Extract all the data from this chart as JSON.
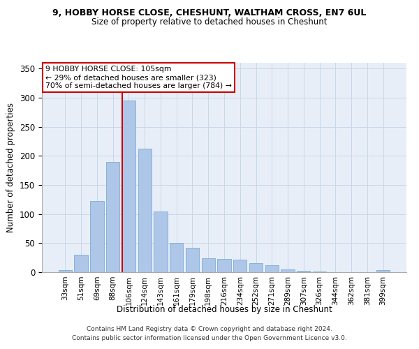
{
  "title1": "9, HOBBY HORSE CLOSE, CHESHUNT, WALTHAM CROSS, EN7 6UL",
  "title2": "Size of property relative to detached houses in Cheshunt",
  "xlabel": "Distribution of detached houses by size in Cheshunt",
  "ylabel": "Number of detached properties",
  "footer1": "Contains HM Land Registry data © Crown copyright and database right 2024.",
  "footer2": "Contains public sector information licensed under the Open Government Licence v3.0.",
  "bar_labels": [
    "33sqm",
    "51sqm",
    "69sqm",
    "88sqm",
    "106sqm",
    "124sqm",
    "143sqm",
    "161sqm",
    "179sqm",
    "198sqm",
    "216sqm",
    "234sqm",
    "252sqm",
    "271sqm",
    "289sqm",
    "307sqm",
    "326sqm",
    "344sqm",
    "362sqm",
    "381sqm",
    "399sqm"
  ],
  "bar_values": [
    4,
    30,
    122,
    190,
    295,
    212,
    105,
    51,
    42,
    24,
    23,
    22,
    16,
    12,
    5,
    2,
    1,
    0,
    0,
    0,
    4
  ],
  "bar_color": "#aec6e8",
  "bar_edge_color": "#7aafd4",
  "property_line_x": 4,
  "annotation_line1": "9 HOBBY HORSE CLOSE: 105sqm",
  "annotation_line2": "← 29% of detached houses are smaller (323)",
  "annotation_line3": "70% of semi-detached houses are larger (784) →",
  "annotation_box_color": "#ffffff",
  "annotation_box_edge": "#cc0000",
  "property_line_color": "#cc0000",
  "grid_color": "#c8d8e8",
  "background_color": "#e8eef8",
  "ylim": [
    0,
    360
  ],
  "yticks": [
    0,
    50,
    100,
    150,
    200,
    250,
    300,
    350
  ]
}
